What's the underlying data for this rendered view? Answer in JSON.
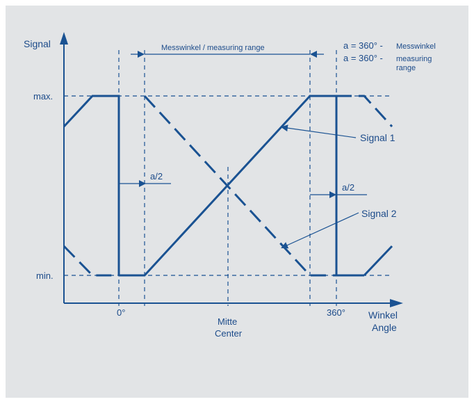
{
  "axes": {
    "y_label": "Signal",
    "x_label_de": "Winkel",
    "x_label_en": "Angle",
    "max_label": "max.",
    "min_label": "min.",
    "tick_0": "0°",
    "tick_360": "360°",
    "center_de": "Mitte",
    "center_en": "Center"
  },
  "range_label": "Messwinkel / measuring range",
  "half_gap_left": "a/2",
  "half_gap_right": "a/2",
  "formula": {
    "line1_main": "a = 360° -",
    "line1_note": "Messwinkel",
    "line2_main": "a = 360° -",
    "line2_note_a": "measuring",
    "line2_note_b": "range"
  },
  "signals": {
    "signal_1": "Signal 1",
    "signal_2": "Signal 2"
  },
  "colors": {
    "line": "#1a5292",
    "text": "#1c4b8a",
    "background": "#e2e4e6"
  }
}
